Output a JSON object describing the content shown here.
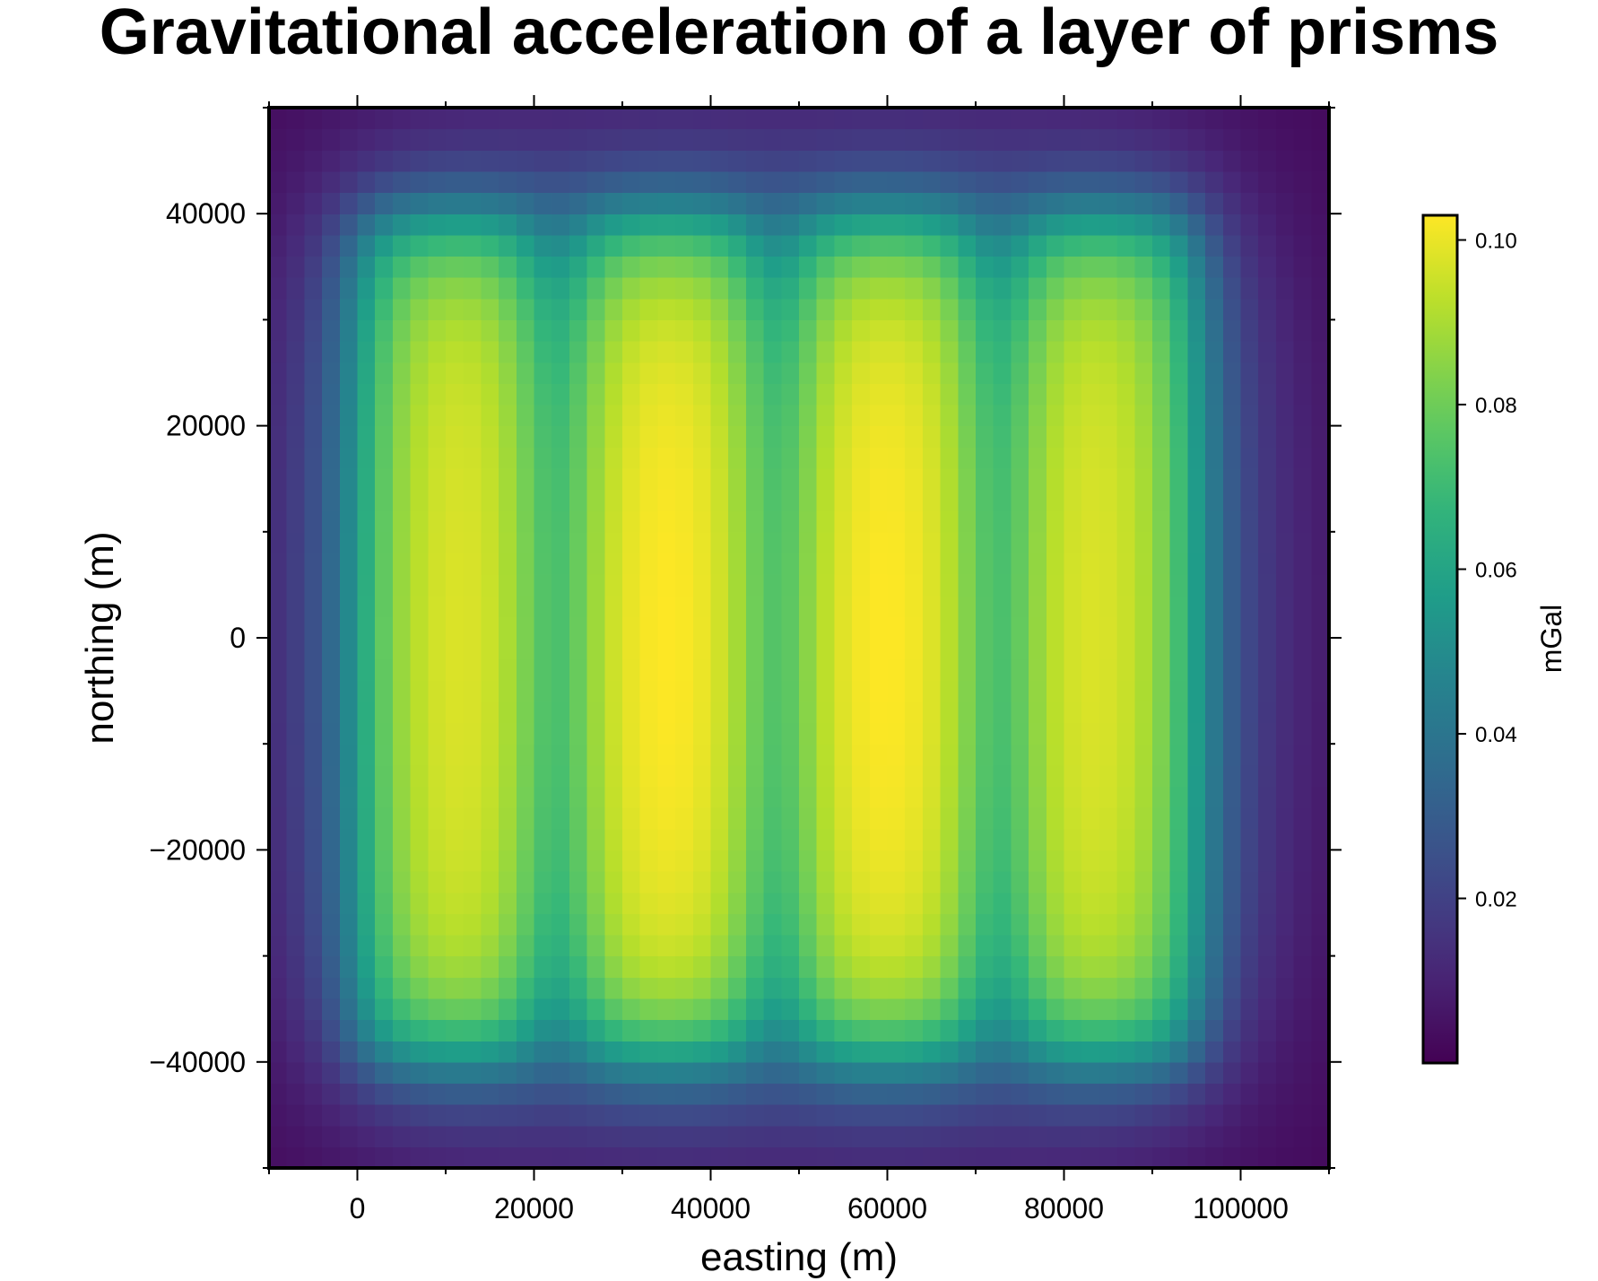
{
  "chart_data": {
    "type": "heatmap",
    "title": "Gravitational acceleration of a layer of prisms",
    "xlabel": "easting (m)",
    "ylabel": "northing (m)",
    "xlim": [
      -10000,
      110000
    ],
    "ylim": [
      -50000,
      50000
    ],
    "x_ticks": [
      0,
      20000,
      40000,
      60000,
      80000,
      100000
    ],
    "x_tick_labels": [
      "0",
      "20000",
      "40000",
      "60000",
      "80000",
      "100000"
    ],
    "x_minor_step": 10000,
    "y_ticks": [
      -40000,
      -20000,
      0,
      20000,
      40000
    ],
    "y_tick_labels": [
      "−40000",
      "−20000",
      "0",
      "20000",
      "40000"
    ],
    "y_minor_step": 10000,
    "grid": false,
    "cell_size": 2000,
    "colorscale": "viridis",
    "colorbar": {
      "label": "mGal",
      "placement": "right",
      "range": [
        0.0,
        0.103
      ],
      "ticks": [
        0.02,
        0.04,
        0.06,
        0.08,
        0.1
      ],
      "tick_labels": [
        "0.02",
        "0.04",
        "0.06",
        "0.08",
        "0.10"
      ]
    },
    "prisms": [
      {
        "x_range": [
          0,
          20000
        ],
        "y_range": [
          -40000,
          40000
        ]
      },
      {
        "x_range": [
          25000,
          45000
        ],
        "y_range": [
          -40000,
          40000
        ]
      },
      {
        "x_range": [
          50000,
          70000
        ],
        "y_range": [
          -40000,
          40000
        ]
      },
      {
        "x_range": [
          75000,
          95000
        ],
        "y_range": [
          -40000,
          40000
        ]
      }
    ],
    "peak_values": [
      {
        "x": 12000,
        "y": 0,
        "value": 0.103
      },
      {
        "x": 36000,
        "y": 0,
        "value": 0.103
      },
      {
        "x": 60000,
        "y": 0,
        "value": 0.103
      },
      {
        "x": 84000,
        "y": 0,
        "value": 0.097
      }
    ],
    "background_value": 0.0
  }
}
